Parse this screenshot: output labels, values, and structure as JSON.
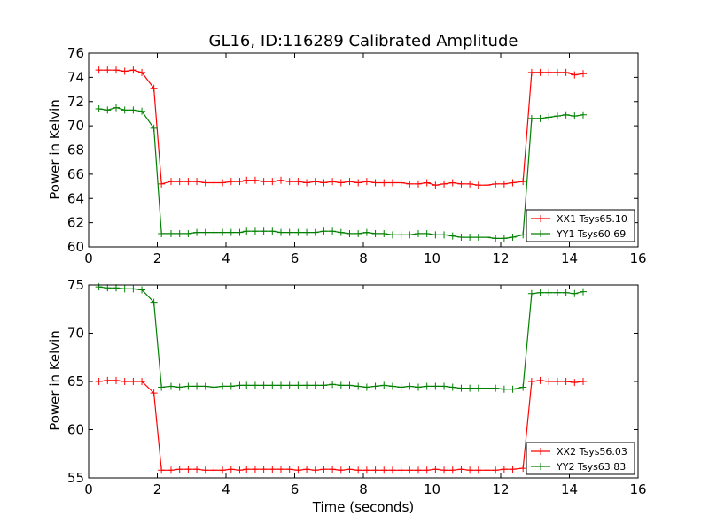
{
  "chart_data": [
    {
      "type": "line",
      "title": "GL16, ID:116289 Calibrated Amplitude",
      "xlabel": "",
      "ylabel": "Power in Kelvin",
      "xlim": [
        0,
        16
      ],
      "ylim": [
        60,
        76
      ],
      "xticks": [
        0,
        2,
        4,
        6,
        8,
        10,
        12,
        14,
        16
      ],
      "yticks": [
        60,
        62,
        64,
        66,
        68,
        70,
        72,
        74,
        76
      ],
      "legend_position": "lower-right",
      "grid": false,
      "x": [
        0.3,
        0.55,
        0.8,
        1.05,
        1.3,
        1.55,
        1.9,
        2.12,
        2.4,
        2.65,
        2.9,
        3.15,
        3.4,
        3.65,
        3.9,
        4.15,
        4.4,
        4.6,
        4.85,
        5.1,
        5.35,
        5.6,
        5.85,
        6.1,
        6.35,
        6.6,
        6.85,
        7.1,
        7.35,
        7.6,
        7.85,
        8.1,
        8.35,
        8.6,
        8.85,
        9.1,
        9.35,
        9.6,
        9.85,
        10.1,
        10.35,
        10.6,
        10.85,
        11.1,
        11.35,
        11.6,
        11.85,
        12.1,
        12.35,
        12.65,
        12.9,
        13.15,
        13.4,
        13.65,
        13.9,
        14.15,
        14.4
      ],
      "series": [
        {
          "name": "XX1 Tsys65.10",
          "color": "#ff0000",
          "values": [
            74.6,
            74.6,
            74.6,
            74.5,
            74.6,
            74.4,
            73.1,
            65.2,
            65.4,
            65.4,
            65.4,
            65.4,
            65.3,
            65.3,
            65.3,
            65.4,
            65.4,
            65.5,
            65.5,
            65.4,
            65.4,
            65.5,
            65.4,
            65.4,
            65.3,
            65.4,
            65.3,
            65.4,
            65.3,
            65.4,
            65.3,
            65.4,
            65.3,
            65.3,
            65.3,
            65.3,
            65.2,
            65.2,
            65.3,
            65.1,
            65.2,
            65.3,
            65.2,
            65.2,
            65.1,
            65.1,
            65.2,
            65.2,
            65.3,
            65.4,
            74.4,
            74.4,
            74.4,
            74.4,
            74.4,
            74.2,
            74.3
          ]
        },
        {
          "name": "YY1 Tsys60.69",
          "color": "#008000",
          "values": [
            71.4,
            71.3,
            71.5,
            71.3,
            71.3,
            71.2,
            69.8,
            61.1,
            61.1,
            61.1,
            61.1,
            61.2,
            61.2,
            61.2,
            61.2,
            61.2,
            61.2,
            61.3,
            61.3,
            61.3,
            61.3,
            61.2,
            61.2,
            61.2,
            61.2,
            61.2,
            61.3,
            61.3,
            61.2,
            61.1,
            61.1,
            61.2,
            61.1,
            61.1,
            61.0,
            61.0,
            61.0,
            61.1,
            61.1,
            61.0,
            61.0,
            60.9,
            60.8,
            60.8,
            60.8,
            60.8,
            60.7,
            60.7,
            60.8,
            61.0,
            70.6,
            70.6,
            70.7,
            70.8,
            70.9,
            70.8,
            70.9
          ]
        }
      ]
    },
    {
      "type": "line",
      "title": "",
      "xlabel": "Time (seconds)",
      "ylabel": "Power in Kelvin",
      "xlim": [
        0,
        16
      ],
      "ylim": [
        55,
        75
      ],
      "xticks": [
        0,
        2,
        4,
        6,
        8,
        10,
        12,
        14,
        16
      ],
      "yticks": [
        55,
        60,
        65,
        70,
        75
      ],
      "legend_position": "lower-right",
      "grid": false,
      "x": [
        0.3,
        0.55,
        0.8,
        1.05,
        1.3,
        1.55,
        1.9,
        2.12,
        2.4,
        2.65,
        2.9,
        3.15,
        3.4,
        3.65,
        3.9,
        4.15,
        4.4,
        4.6,
        4.85,
        5.1,
        5.35,
        5.6,
        5.85,
        6.1,
        6.35,
        6.6,
        6.85,
        7.1,
        7.35,
        7.6,
        7.85,
        8.1,
        8.35,
        8.6,
        8.85,
        9.1,
        9.35,
        9.6,
        9.85,
        10.1,
        10.35,
        10.6,
        10.85,
        11.1,
        11.35,
        11.6,
        11.85,
        12.1,
        12.35,
        12.65,
        12.9,
        13.15,
        13.4,
        13.65,
        13.9,
        14.15,
        14.4
      ],
      "series": [
        {
          "name": "XX2 Tsys56.03",
          "color": "#ff0000",
          "values": [
            65.0,
            65.1,
            65.1,
            65.0,
            65.0,
            65.0,
            63.8,
            55.8,
            55.8,
            55.9,
            55.9,
            55.9,
            55.8,
            55.8,
            55.8,
            55.9,
            55.8,
            55.9,
            55.9,
            55.9,
            55.9,
            55.9,
            55.9,
            55.8,
            55.9,
            55.8,
            55.9,
            55.9,
            55.8,
            55.9,
            55.8,
            55.8,
            55.8,
            55.8,
            55.8,
            55.8,
            55.8,
            55.8,
            55.8,
            55.9,
            55.8,
            55.8,
            55.9,
            55.8,
            55.8,
            55.8,
            55.8,
            55.9,
            55.9,
            56.0,
            65.0,
            65.1,
            65.0,
            65.0,
            65.0,
            64.9,
            65.0
          ]
        },
        {
          "name": "YY2 Tsys63.83",
          "color": "#008000",
          "values": [
            74.8,
            74.7,
            74.7,
            74.6,
            74.6,
            74.5,
            73.2,
            64.4,
            64.5,
            64.4,
            64.5,
            64.5,
            64.5,
            64.4,
            64.5,
            64.5,
            64.6,
            64.6,
            64.6,
            64.6,
            64.6,
            64.6,
            64.6,
            64.6,
            64.6,
            64.6,
            64.6,
            64.7,
            64.6,
            64.6,
            64.5,
            64.4,
            64.5,
            64.6,
            64.5,
            64.4,
            64.5,
            64.4,
            64.5,
            64.5,
            64.5,
            64.4,
            64.3,
            64.3,
            64.3,
            64.3,
            64.3,
            64.2,
            64.2,
            64.4,
            74.1,
            74.2,
            74.2,
            74.2,
            74.2,
            74.1,
            74.3
          ]
        }
      ]
    }
  ]
}
